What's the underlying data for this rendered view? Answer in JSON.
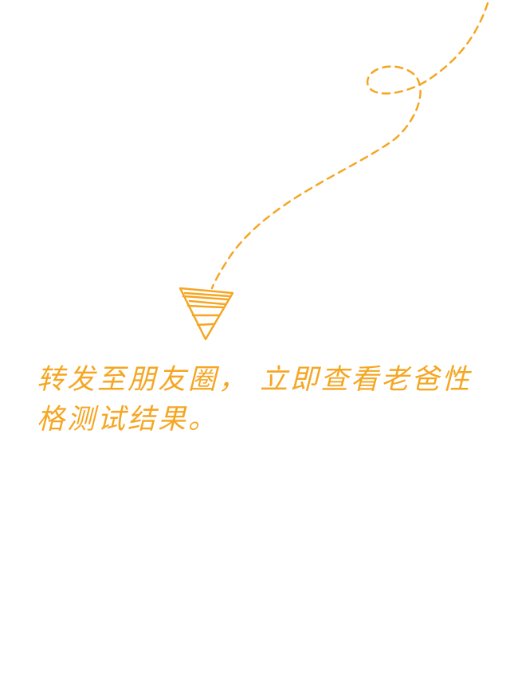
{
  "hint": {
    "text": "转发至朋友圈， 立即查看老爸性格测试结果。"
  },
  "colors": {
    "accent": "#f5a623",
    "background": "#ffffff"
  },
  "icons": {
    "arrow": "dashed-loop-arrow-icon"
  }
}
